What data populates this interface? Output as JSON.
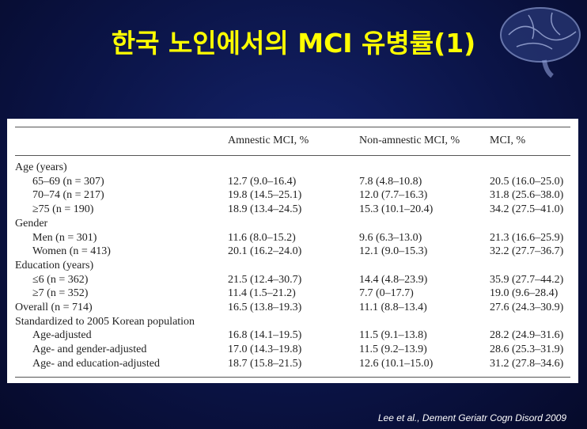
{
  "header": {
    "title": "한국 노인에서의 MCI 유병률(1)"
  },
  "table": {
    "columns": [
      "Amnestic MCI, %",
      "Non-amnestic MCI, %",
      "MCI, %"
    ],
    "groups": [
      {
        "heading": "Age (years)",
        "rows": [
          [
            "65–69 (n = 307)",
            "12.7 (9.0–16.4)",
            "7.8 (4.8–10.8)",
            "20.5 (16.0–25.0)"
          ],
          [
            "70–74 (n = 217)",
            "19.8 (14.5–25.1)",
            "12.0 (7.7–16.3)",
            "31.8 (25.6–38.0)"
          ],
          [
            "≥75 (n = 190)",
            "18.9 (13.4–24.5)",
            "15.3 (10.1–20.4)",
            "34.2 (27.5–41.0)"
          ]
        ]
      },
      {
        "heading": "Gender",
        "rows": [
          [
            "Men (n = 301)",
            "11.6 (8.0–15.2)",
            "9.6 (6.3–13.0)",
            "21.3 (16.6–25.9)"
          ],
          [
            "Women (n = 413)",
            "20.1 (16.2–24.0)",
            "12.1 (9.0–15.3)",
            "32.2 (27.7–36.7)"
          ]
        ]
      },
      {
        "heading": "Education (years)",
        "rows": [
          [
            "≤6 (n = 362)",
            "21.5 (12.4–30.7)",
            "14.4 (4.8–23.9)",
            "35.9 (27.7–44.2)"
          ],
          [
            "≥7 (n = 352)",
            "11.4 (1.5–21.2)",
            "7.7 (0–17.7)",
            "19.0 (9.6–28.4)"
          ]
        ]
      },
      {
        "rows": [
          [
            "Overall (n = 714)",
            "16.5 (13.8–19.3)",
            "11.1 (8.8–13.4)",
            "27.6 (24.3–30.9)"
          ]
        ]
      },
      {
        "heading": "Standardized to 2005 Korean population",
        "rows": [
          [
            "Age-adjusted",
            "16.8 (14.1–19.5)",
            "11.5 (9.1–13.8)",
            "28.2 (24.9–31.6)"
          ],
          [
            "Age- and gender-adjusted",
            "17.0 (14.3–19.8)",
            "11.5 (9.2–13.9)",
            "28.6 (25.3–31.9)"
          ],
          [
            "Age- and education-adjusted",
            "18.7 (15.8–21.5)",
            "12.6 (10.1–15.0)",
            "31.2 (27.8–34.6)"
          ]
        ]
      }
    ]
  },
  "footer": {
    "citation": "Lee et al., Dement Geriatr Cogn Disord 2009"
  }
}
